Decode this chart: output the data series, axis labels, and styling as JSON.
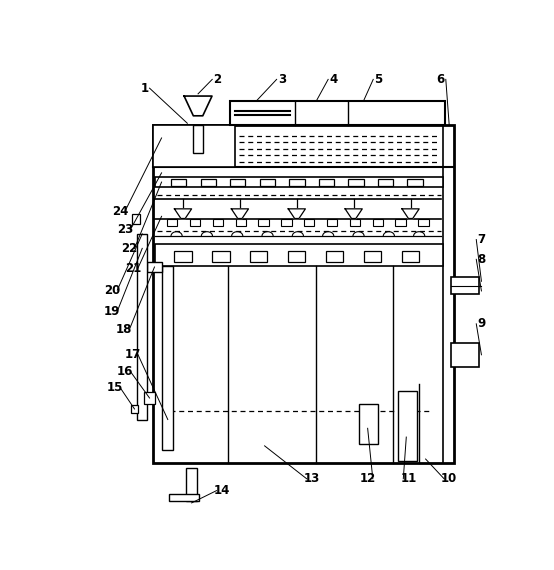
{
  "bg_color": "#ffffff",
  "line_color": "#000000",
  "fig_width": 5.54,
  "fig_height": 5.7,
  "dpi": 100,
  "ox": 0.195,
  "oy": 0.1,
  "ow": 0.7,
  "oh": 0.77
}
